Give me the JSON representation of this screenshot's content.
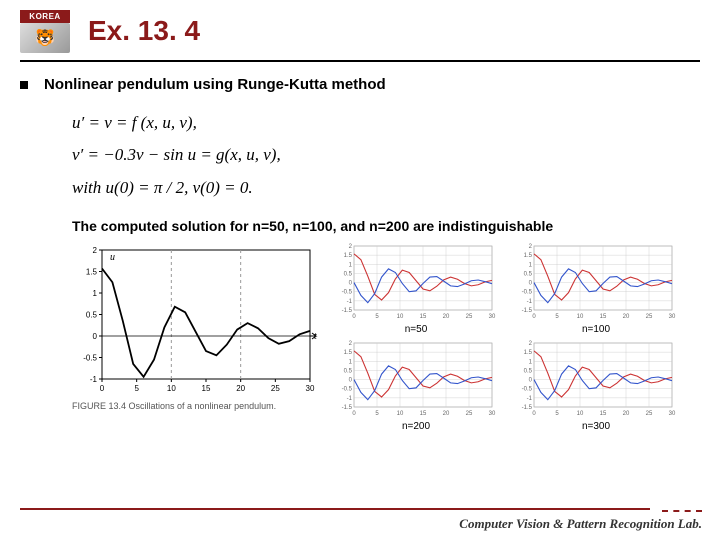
{
  "logo": {
    "banner": "KOREA"
  },
  "title": "Ex. 13. 4",
  "subtitle": "Nonlinear pendulum using Runge-Kutta method",
  "equations": {
    "line1": "u′ = v = f (x, u, v),",
    "line2": "v′ = −0.3v − sin u = g(x, u, v),",
    "line3": "with u(0) = π / 2, v(0) = 0."
  },
  "note": "The computed solution for n=50, n=100, and n=200 are indistinguishable",
  "fig_left": {
    "caption": "FIGURE 13.4  Oscillations of a nonlinear pendulum.",
    "ylabel": "u",
    "xlabel": "t",
    "ylim": [
      -1,
      2
    ],
    "yticks": [
      -1,
      -0.5,
      0,
      0.5,
      1,
      1.5,
      2
    ],
    "xlim": [
      0,
      30
    ],
    "xticks": [
      0,
      5,
      10,
      15,
      20,
      25,
      30
    ],
    "grid_color": "#999",
    "line_color": "#000",
    "bg": "#fff",
    "curve": [
      [
        0,
        1.57
      ],
      [
        1.5,
        1.25
      ],
      [
        3,
        0.35
      ],
      [
        4.5,
        -0.65
      ],
      [
        6,
        -0.95
      ],
      [
        7.5,
        -0.55
      ],
      [
        9,
        0.2
      ],
      [
        10.5,
        0.68
      ],
      [
        12,
        0.55
      ],
      [
        13.5,
        0.1
      ],
      [
        15,
        -0.35
      ],
      [
        16.5,
        -0.45
      ],
      [
        18,
        -0.2
      ],
      [
        19.5,
        0.15
      ],
      [
        21,
        0.3
      ],
      [
        22.5,
        0.18
      ],
      [
        24,
        -0.05
      ],
      [
        25.5,
        -0.18
      ],
      [
        27,
        -0.12
      ],
      [
        28.5,
        0.04
      ],
      [
        30,
        0.12
      ]
    ]
  },
  "minis": {
    "bg": "#fff",
    "grid_color": "#c8c8c8",
    "ylim": [
      -1.5,
      2
    ],
    "yticks": [
      -1.5,
      -1,
      -0.5,
      0,
      0.5,
      1,
      1.5,
      2
    ],
    "xlim": [
      0,
      30
    ],
    "xticks": [
      0,
      5,
      10,
      15,
      20,
      25,
      30
    ],
    "series": [
      {
        "color": "#cc3333",
        "curve": [
          [
            0,
            1.57
          ],
          [
            1.5,
            1.25
          ],
          [
            3,
            0.35
          ],
          [
            4.5,
            -0.65
          ],
          [
            6,
            -0.95
          ],
          [
            7.5,
            -0.55
          ],
          [
            9,
            0.2
          ],
          [
            10.5,
            0.68
          ],
          [
            12,
            0.55
          ],
          [
            13.5,
            0.1
          ],
          [
            15,
            -0.35
          ],
          [
            16.5,
            -0.45
          ],
          [
            18,
            -0.2
          ],
          [
            19.5,
            0.15
          ],
          [
            21,
            0.3
          ],
          [
            22.5,
            0.18
          ],
          [
            24,
            -0.05
          ],
          [
            25.5,
            -0.18
          ],
          [
            27,
            -0.12
          ],
          [
            28.5,
            0.04
          ],
          [
            30,
            0.12
          ]
        ]
      },
      {
        "color": "#3355cc",
        "curve": [
          [
            0,
            0
          ],
          [
            1.5,
            -0.7
          ],
          [
            3,
            -1.1
          ],
          [
            4.5,
            -0.6
          ],
          [
            6,
            0.3
          ],
          [
            7.5,
            0.75
          ],
          [
            9,
            0.55
          ],
          [
            10.5,
            -0.05
          ],
          [
            12,
            -0.5
          ],
          [
            13.5,
            -0.45
          ],
          [
            15,
            -0.05
          ],
          [
            16.5,
            0.3
          ],
          [
            18,
            0.33
          ],
          [
            19.5,
            0.08
          ],
          [
            21,
            -0.18
          ],
          [
            22.5,
            -0.22
          ],
          [
            24,
            -0.08
          ],
          [
            25.5,
            0.1
          ],
          [
            27,
            0.14
          ],
          [
            28.5,
            0.05
          ],
          [
            30,
            -0.06
          ]
        ]
      }
    ],
    "labels": [
      "n=50",
      "n=100",
      "n=200",
      "n=300"
    ]
  },
  "footer": "Computer Vision & Pattern Recognition Lab."
}
